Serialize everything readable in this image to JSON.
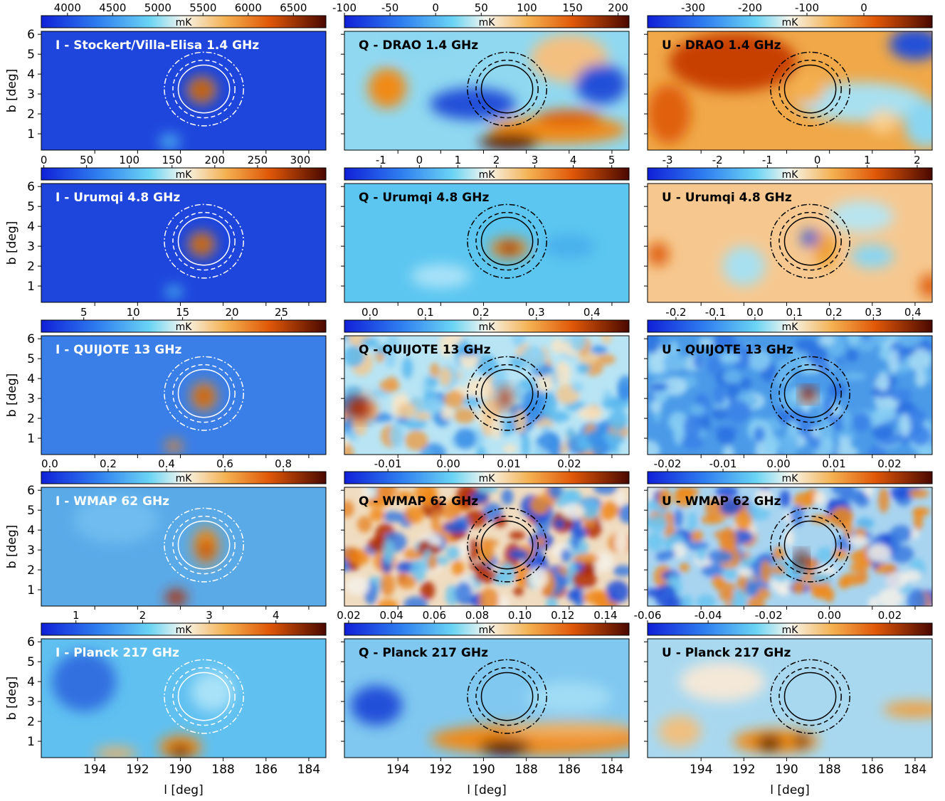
{
  "axes": {
    "xlabel": "l [deg]",
    "ylabel": "b [deg]",
    "xlim": [
      196.5,
      183.2
    ],
    "xticks": [
      194,
      192,
      190,
      188,
      186,
      184
    ],
    "ylim": [
      0.18,
      6.15
    ],
    "yticks": [
      1,
      2,
      3,
      4,
      5,
      6
    ]
  },
  "chart_data": [
    {
      "type": "heatmap",
      "title": "I - Stockert/Villa-Elisa 1.4 GHz",
      "colorbar_label": "mK",
      "colorbar_lim": [
        3710,
        6860
      ],
      "colorbar_ticks": [
        4000,
        4500,
        5000,
        5500,
        6000,
        6500
      ]
    },
    {
      "type": "heatmap",
      "title": "Q - DRAO 1.4 GHz",
      "colorbar_label": "mK",
      "colorbar_lim": [
        -100,
        212
      ],
      "colorbar_ticks": [
        -100,
        -50,
        0,
        50,
        100,
        150,
        200
      ]
    },
    {
      "type": "heatmap",
      "title": "U - DRAO 1.4 GHz",
      "colorbar_label": "mK",
      "colorbar_lim": [
        -380,
        120
      ],
      "colorbar_ticks": [
        -300,
        -200,
        -100,
        0
      ]
    },
    {
      "type": "heatmap",
      "title": "I - Urumqi 4.8 GHz",
      "colorbar_label": "mK",
      "colorbar_lim": [
        -3,
        330
      ],
      "colorbar_ticks": [
        0,
        50,
        100,
        150,
        200,
        250,
        300
      ]
    },
    {
      "type": "heatmap",
      "title": "Q - Urumqi 4.8 GHz",
      "colorbar_label": "mK",
      "colorbar_lim": [
        -1.95,
        5.45
      ],
      "colorbar_ticks": [
        -1,
        0,
        1,
        2,
        3,
        4,
        5
      ]
    },
    {
      "type": "heatmap",
      "title": "U - Urumqi 4.8 GHz",
      "colorbar_label": "mK",
      "colorbar_lim": [
        -3.4,
        2.3
      ],
      "colorbar_ticks": [
        -3,
        -2,
        -1,
        0,
        1,
        2
      ]
    },
    {
      "type": "heatmap",
      "title": "I - QUIJOTE 13 GHz",
      "colorbar_label": "mK",
      "colorbar_lim": [
        0.7,
        29.5
      ],
      "colorbar_ticks": [
        5,
        10,
        15,
        20,
        25
      ]
    },
    {
      "type": "heatmap",
      "title": "Q - QUIJOTE 13 GHz",
      "colorbar_label": "mK",
      "colorbar_lim": [
        -0.046,
        0.467
      ],
      "colorbar_ticks": [
        {
          "value": 0,
          "label": "0.0"
        },
        0.1,
        0.2,
        0.3,
        0.4
      ]
    },
    {
      "type": "heatmap",
      "title": "U - QUIJOTE 13 GHz",
      "colorbar_label": "mK",
      "colorbar_lim": [
        -0.272,
        0.449
      ],
      "colorbar_ticks": [
        -0.2,
        -0.1,
        {
          "value": 0,
          "label": "0.0"
        },
        0.1,
        0.2,
        0.3,
        0.4
      ]
    },
    {
      "type": "heatmap",
      "title": "I - WMAP 62 GHz",
      "colorbar_label": "mK",
      "colorbar_lim": [
        -0.029,
        0.946
      ],
      "colorbar_ticks": [
        {
          "value": 0,
          "label": "0.0"
        },
        0.2,
        0.4,
        0.6,
        0.8
      ]
    },
    {
      "type": "heatmap",
      "title": "Q - WMAP 62 GHz",
      "colorbar_label": "mK",
      "colorbar_lim": [
        -0.0172,
        0.0299
      ],
      "colorbar_ticks": [
        -0.01,
        {
          "value": 0,
          "label": "0.00"
        },
        0.01,
        0.02
      ]
    },
    {
      "type": "heatmap",
      "title": "U - WMAP 62 GHz",
      "colorbar_label": "mK",
      "colorbar_lim": [
        -0.0236,
        0.0277
      ],
      "colorbar_ticks": [
        -0.02,
        -0.01,
        {
          "value": 0,
          "label": "0.00"
        },
        0.01,
        0.02
      ]
    },
    {
      "type": "heatmap",
      "title": "I - Planck 217 GHz",
      "colorbar_label": "mK",
      "colorbar_lim": [
        0.48,
        4.75
      ],
      "colorbar_ticks": [
        1,
        2,
        3,
        4
      ]
    },
    {
      "type": "heatmap",
      "title": "Q - Planck 217 GHz",
      "colorbar_label": "mK",
      "colorbar_lim": [
        0.018,
        0.151
      ],
      "colorbar_ticks": [
        0.02,
        0.04,
        0.06,
        0.08,
        {
          "value": 0.1,
          "label": "0.10"
        },
        0.12,
        0.14
      ]
    },
    {
      "type": "heatmap",
      "title": "U - Planck 217 GHz",
      "colorbar_label": "mK",
      "colorbar_lim": [
        -0.06,
        0.034
      ],
      "colorbar_ticks": [
        -0.06,
        -0.04,
        -0.02,
        {
          "value": 0,
          "label": "0.00"
        },
        0.02
      ]
    }
  ]
}
